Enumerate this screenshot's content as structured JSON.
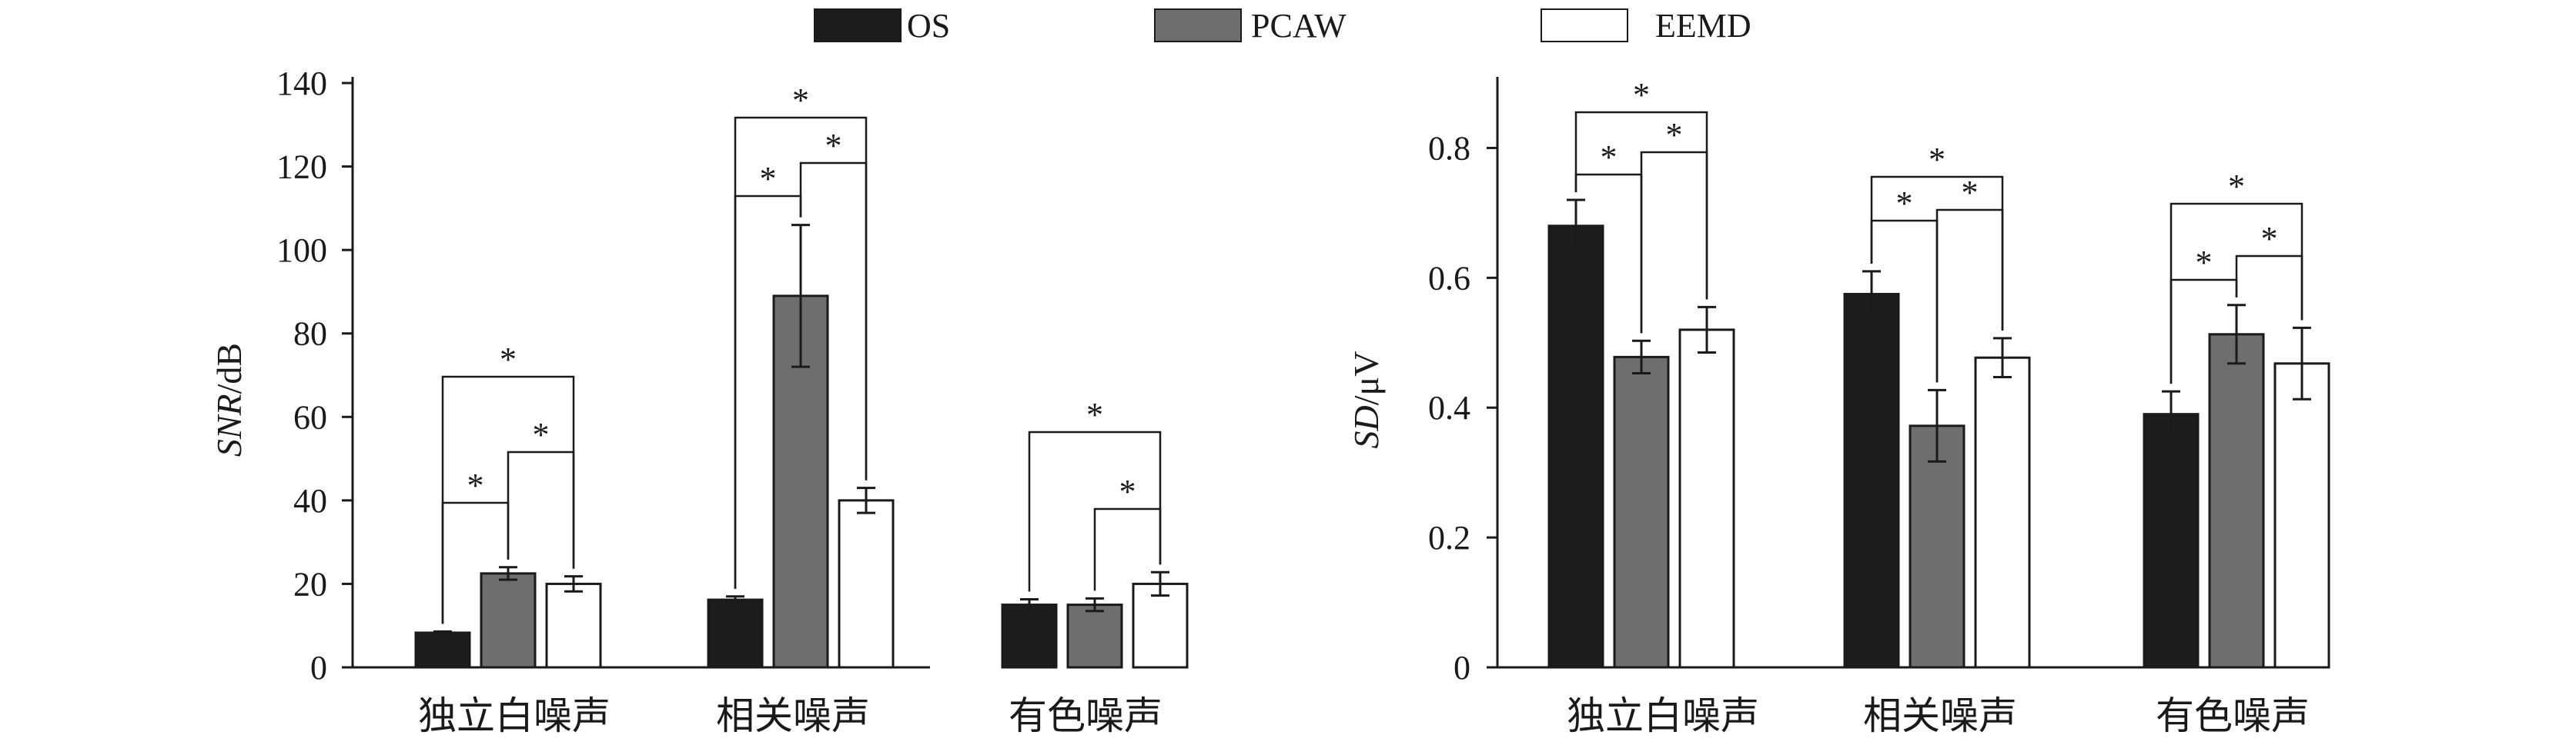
{
  "legend": {
    "entries": [
      {
        "name": "OS",
        "color": "#1c1c1c"
      },
      {
        "name": "PCAW",
        "color": "#6e6e6e"
      },
      {
        "name": "EEMD",
        "color": "#ffffff"
      }
    ]
  },
  "chart_data": [
    {
      "type": "bar",
      "ylabel_italic": "SNR",
      "ylabel_unit": "/dB",
      "categories": [
        "独立白噪声",
        "相关噪声",
        "有色噪声"
      ],
      "ylim": [
        0,
        140
      ],
      "yticks": [
        "0",
        "20",
        "40",
        "60",
        "80",
        "100",
        "120",
        "140"
      ],
      "grid": false,
      "series": [
        {
          "name": "OS",
          "values": [
            8.3,
            16.2,
            15.0
          ],
          "errors": [
            0.3,
            0.8,
            1.3
          ]
        },
        {
          "name": "PCAW",
          "values": [
            22.5,
            89.0,
            15.0
          ],
          "errors": [
            1.5,
            17.0,
            1.5
          ]
        },
        {
          "name": "EEMD",
          "values": [
            20.0,
            40.0,
            20.0
          ],
          "errors": [
            1.8,
            3.0,
            2.8
          ]
        }
      ],
      "significance": [
        {
          "category": 0,
          "from": "OS",
          "to": "PCAW",
          "label": "*"
        },
        {
          "category": 0,
          "from": "PCAW",
          "to": "EEMD",
          "label": "*"
        },
        {
          "category": 0,
          "from": "OS",
          "to": "EEMD",
          "label": "*"
        },
        {
          "category": 1,
          "from": "OS",
          "to": "PCAW",
          "label": "*"
        },
        {
          "category": 1,
          "from": "PCAW",
          "to": "EEMD",
          "label": "*"
        },
        {
          "category": 1,
          "from": "OS",
          "to": "EEMD",
          "label": "*"
        },
        {
          "category": 2,
          "from": "PCAW",
          "to": "EEMD",
          "label": "*"
        },
        {
          "category": 2,
          "from": "OS",
          "to": "EEMD",
          "label": "*"
        }
      ]
    },
    {
      "type": "bar",
      "ylabel_italic": "SD",
      "ylabel_unit": "/μV",
      "categories": [
        "独立白噪声",
        "相关噪声",
        "有色噪声"
      ],
      "ylim": [
        0,
        0.9
      ],
      "yticks": [
        "0",
        "0.2",
        "0.4",
        "0.6",
        "0.8"
      ],
      "grid": false,
      "series": [
        {
          "name": "OS",
          "values": [
            0.68,
            0.575,
            0.39
          ],
          "errors": [
            0.04,
            0.035,
            0.035
          ]
        },
        {
          "name": "PCAW",
          "values": [
            0.478,
            0.372,
            0.513
          ],
          "errors": [
            0.025,
            0.055,
            0.045
          ]
        },
        {
          "name": "EEMD",
          "values": [
            0.52,
            0.477,
            0.468
          ],
          "errors": [
            0.035,
            0.03,
            0.055
          ]
        }
      ],
      "significance": [
        {
          "category": 0,
          "from": "OS",
          "to": "PCAW",
          "label": "*"
        },
        {
          "category": 0,
          "from": "PCAW",
          "to": "EEMD",
          "label": "*"
        },
        {
          "category": 0,
          "from": "OS",
          "to": "EEMD",
          "label": "*"
        },
        {
          "category": 1,
          "from": "OS",
          "to": "PCAW",
          "label": "*"
        },
        {
          "category": 1,
          "from": "PCAW",
          "to": "EEMD",
          "label": "*"
        },
        {
          "category": 1,
          "from": "OS",
          "to": "EEMD",
          "label": "*"
        },
        {
          "category": 2,
          "from": "OS",
          "to": "PCAW",
          "label": "*"
        },
        {
          "category": 2,
          "from": "PCAW",
          "to": "EEMD",
          "label": "*"
        },
        {
          "category": 2,
          "from": "OS",
          "to": "EEMD",
          "label": "*"
        }
      ]
    }
  ]
}
